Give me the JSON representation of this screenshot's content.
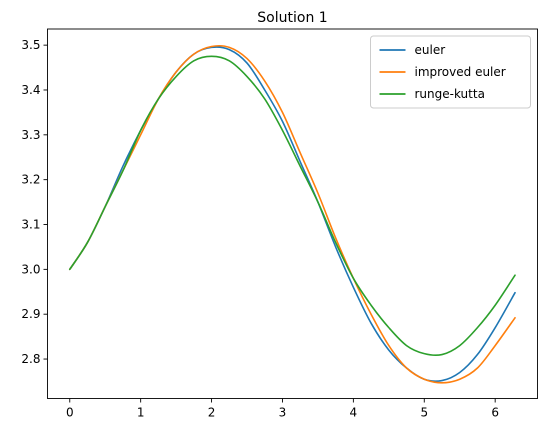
{
  "chart_data": {
    "type": "line",
    "title": "Solution 1",
    "xlabel": "",
    "ylabel": "",
    "xlim": [
      -0.314,
      6.597
    ],
    "ylim": [
      2.712,
      3.536
    ],
    "xticks": [
      0,
      1,
      2,
      3,
      4,
      5,
      6
    ],
    "xtick_labels": [
      "0",
      "1",
      "2",
      "3",
      "4",
      "5",
      "6"
    ],
    "yticks": [
      2.8,
      2.9,
      3.0,
      3.1,
      3.2,
      3.3,
      3.4,
      3.5
    ],
    "ytick_labels": [
      "2.8",
      "2.9",
      "3.0",
      "3.1",
      "3.2",
      "3.3",
      "3.4",
      "3.5"
    ],
    "grid": false,
    "legend_position": "top-right",
    "series": [
      {
        "name": "euler",
        "color": "#1f77b4",
        "x": [
          0,
          0.25,
          0.5,
          0.75,
          1.0,
          1.25,
          1.5,
          1.75,
          2.0,
          2.25,
          2.5,
          2.75,
          3.0,
          3.25,
          3.5,
          3.75,
          4.0,
          4.25,
          4.5,
          4.75,
          5.0,
          5.25,
          5.5,
          5.75,
          6.0,
          6.28
        ],
        "y": [
          3.0,
          3.06,
          3.14,
          3.23,
          3.31,
          3.38,
          3.44,
          3.48,
          3.495,
          3.49,
          3.46,
          3.4,
          3.33,
          3.24,
          3.15,
          3.05,
          2.96,
          2.88,
          2.82,
          2.78,
          2.755,
          2.752,
          2.77,
          2.81,
          2.87,
          2.948
        ]
      },
      {
        "name": "improved euler",
        "color": "#ff7f0e",
        "x": [
          0,
          0.25,
          0.5,
          0.75,
          1.0,
          1.25,
          1.5,
          1.75,
          2.0,
          2.25,
          2.5,
          2.75,
          3.0,
          3.25,
          3.5,
          3.75,
          4.0,
          4.25,
          4.5,
          4.75,
          5.0,
          5.25,
          5.5,
          5.75,
          6.0,
          6.28
        ],
        "y": [
          3.0,
          3.06,
          3.14,
          3.22,
          3.3,
          3.38,
          3.44,
          3.48,
          3.497,
          3.495,
          3.47,
          3.42,
          3.35,
          3.26,
          3.17,
          3.07,
          2.98,
          2.9,
          2.83,
          2.78,
          2.755,
          2.747,
          2.755,
          2.78,
          2.83,
          2.892
        ]
      },
      {
        "name": "runge-kutta",
        "color": "#2ca02c",
        "x": [
          0,
          0.25,
          0.5,
          0.75,
          1.0,
          1.25,
          1.5,
          1.75,
          2.0,
          2.25,
          2.5,
          2.75,
          3.0,
          3.25,
          3.5,
          3.75,
          4.0,
          4.25,
          4.5,
          4.75,
          5.0,
          5.25,
          5.5,
          5.75,
          6.0,
          6.28
        ],
        "y": [
          3.0,
          3.06,
          3.14,
          3.22,
          3.31,
          3.38,
          3.43,
          3.465,
          3.475,
          3.465,
          3.43,
          3.38,
          3.31,
          3.23,
          3.15,
          3.06,
          2.98,
          2.92,
          2.87,
          2.83,
          2.812,
          2.81,
          2.83,
          2.87,
          2.92,
          2.987
        ]
      }
    ]
  }
}
